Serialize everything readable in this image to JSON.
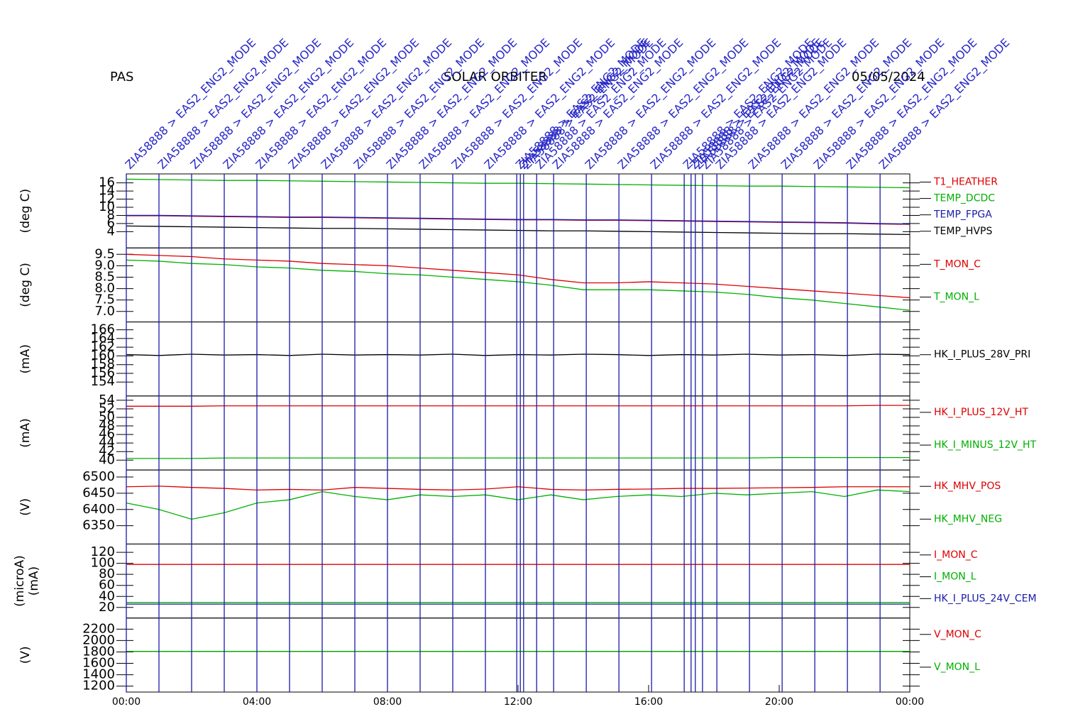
{
  "header": {
    "left": "PAS",
    "center": "SOLAR ORBITER",
    "right": "05/05/2024"
  },
  "time": {
    "x": [
      0,
      1,
      2,
      3,
      4,
      5,
      6,
      7,
      8,
      9,
      10,
      11,
      12,
      13,
      14,
      15,
      16,
      17,
      18,
      19,
      20,
      21,
      22,
      23,
      24
    ],
    "xlim": [
      0,
      24
    ],
    "xticks": [
      {
        "value": 0,
        "label": "00:00"
      },
      {
        "value": 4,
        "label": "04:00"
      },
      {
        "value": 8,
        "label": "08:00"
      },
      {
        "value": 12,
        "label": "12:00"
      },
      {
        "value": 16,
        "label": "16:00"
      },
      {
        "value": 20,
        "label": "20:00"
      },
      {
        "value": 24,
        "label": "00:00"
      }
    ]
  },
  "events": [
    {
      "x": 0,
      "label": "ZIA58888 > EAS2_ENG2_MODE"
    },
    {
      "x": 1,
      "label": "ZIA58888 > EAS2_ENG2_MODE"
    },
    {
      "x": 2,
      "label": "ZIA58888 > EAS2_ENG2_MODE"
    },
    {
      "x": 3,
      "label": "ZIA58888 > EAS2_ENG2_MODE"
    },
    {
      "x": 4,
      "label": "ZIA58888 > EAS2_ENG2_MODE"
    },
    {
      "x": 5,
      "label": "ZIA58888 > EAS2_ENG2_MODE"
    },
    {
      "x": 6,
      "label": "ZIA58888 > EAS2_ENG2_MODE"
    },
    {
      "x": 7,
      "label": "ZIA58888 > EAS2_ENG2_MODE"
    },
    {
      "x": 8,
      "label": "ZIA58888 > EAS2_ENG2_MODE"
    },
    {
      "x": 9,
      "label": "ZIA58888 > EAS2_ENG2_MODE"
    },
    {
      "x": 10,
      "label": "ZIA58888 > EAS2_ENG2_MODE"
    },
    {
      "x": 11,
      "label": "ZIA58888 > EAS2_ENG2_MODE"
    },
    {
      "x": 11.96,
      "label": "ZIA58888 > EAS2_ENG2_MODE"
    },
    {
      "x": 12.07,
      "label": "ZIA58888 > EAS2_ENG2_MODE"
    },
    {
      "x": 12.17,
      "label": "ZIA58888 > EAS2_ENG2_MODE"
    },
    {
      "x": 12.57,
      "label": "ZIA58888 > EAS2_ENG2_MODE"
    },
    {
      "x": 13.09,
      "label": "ZIA58888 > EAS2_ENG2_MODE"
    },
    {
      "x": 14.09,
      "label": "ZIA58888 > EAS2_ENG2_MODE"
    },
    {
      "x": 15.09,
      "label": "ZIA58888 > EAS2_ENG2_MODE"
    },
    {
      "x": 16.09,
      "label": "ZIA58888 > EAS2_ENG2_MODE"
    },
    {
      "x": 17.09,
      "label": "ZIA58888 > EAS2_ENG2_MODE"
    },
    {
      "x": 17.3,
      "label": "ZIA58888 > EAS2_ENG2_MODE"
    },
    {
      "x": 17.43,
      "label": "ZIA58888 > EAS2_ENG2_MODE"
    },
    {
      "x": 17.65,
      "label": "ZIA58888 > EAS2_ENG2_MODE"
    },
    {
      "x": 18.09,
      "label": "ZIA58888 > EAS2_ENG2_MODE"
    },
    {
      "x": 19.09,
      "label": "ZIA58888 > EAS2_ENG2_MODE"
    },
    {
      "x": 20.09,
      "label": "ZIA58888 > EAS2_ENG2_MODE"
    },
    {
      "x": 21.09,
      "label": "ZIA58888 > EAS2_ENG2_MODE"
    },
    {
      "x": 22.09,
      "label": "ZIA58888 > EAS2_ENG2_MODE"
    },
    {
      "x": 23.09,
      "label": "ZIA58888 > EAS2_ENG2_MODE"
    }
  ],
  "chart_data": [
    {
      "type": "line",
      "ylabel": "(deg C)",
      "ylim": [
        0,
        18.2
      ],
      "yticks": [
        4,
        6,
        8,
        10,
        12,
        14,
        16
      ],
      "series": [
        {
          "name": "T1_HEATHER",
          "color": "#dd0000",
          "values": [
            7.9,
            7.9,
            7.8,
            7.7,
            7.6,
            7.5,
            7.5,
            7.4,
            7.3,
            7.2,
            7.1,
            7.0,
            6.9,
            6.9,
            6.8,
            6.8,
            6.7,
            6.6,
            6.5,
            6.4,
            6.3,
            6.2,
            6.1,
            5.9,
            5.8
          ]
        },
        {
          "name": "TEMP_DCDC",
          "color": "#00b000",
          "values": [
            16.9,
            16.8,
            16.7,
            16.6,
            16.6,
            16.5,
            16.4,
            16.3,
            16.2,
            16.1,
            16.0,
            15.9,
            15.9,
            15.8,
            15.7,
            15.6,
            15.5,
            15.4,
            15.3,
            15.2,
            15.2,
            15.1,
            15.0,
            14.9,
            14.8
          ]
        },
        {
          "name": "TEMP_FPGA",
          "color": "#1a1aaa",
          "values": [
            8.0,
            8.0,
            7.9,
            7.8,
            7.7,
            7.6,
            7.6,
            7.5,
            7.4,
            7.3,
            7.2,
            7.1,
            7.0,
            7.0,
            6.9,
            6.9,
            6.8,
            6.7,
            6.6,
            6.5,
            6.4,
            6.3,
            6.2,
            6.0,
            5.9
          ]
        },
        {
          "name": "TEMP_HVPS",
          "color": "#000000",
          "values": [
            5.4,
            5.3,
            5.2,
            5.1,
            5.0,
            4.9,
            4.8,
            4.8,
            4.7,
            4.6,
            4.5,
            4.4,
            4.3,
            4.2,
            4.2,
            4.1,
            4.0,
            3.9,
            3.8,
            3.7,
            3.6,
            3.5,
            3.5,
            3.4,
            3.3
          ]
        }
      ]
    },
    {
      "type": "line",
      "ylabel": "(deg C)",
      "ylim": [
        6.54,
        9.78
      ],
      "yticks": [
        {
          "value": 7,
          "label": "7.0"
        },
        {
          "value": 7.5,
          "label": "7.5"
        },
        {
          "value": 8,
          "label": "8.0"
        },
        {
          "value": 8.5,
          "label": "8.5"
        },
        {
          "value": 9,
          "label": "9.0"
        },
        {
          "value": 9.5,
          "label": "9.5"
        }
      ],
      "series": [
        {
          "name": "T_MON_C",
          "color": "#dd0000",
          "values": [
            9.5,
            9.45,
            9.4,
            9.3,
            9.25,
            9.2,
            9.1,
            9.05,
            9.0,
            8.9,
            8.8,
            8.7,
            8.6,
            8.4,
            8.25,
            8.25,
            8.3,
            8.25,
            8.2,
            8.1,
            8.0,
            7.9,
            7.8,
            7.7,
            7.6
          ]
        },
        {
          "name": "T_MON_L",
          "color": "#00b000",
          "values": [
            9.25,
            9.2,
            9.1,
            9.05,
            8.95,
            8.9,
            8.8,
            8.75,
            8.65,
            8.6,
            8.5,
            8.4,
            8.3,
            8.15,
            7.95,
            7.95,
            7.95,
            7.9,
            7.85,
            7.75,
            7.6,
            7.5,
            7.35,
            7.2,
            7.05
          ]
        }
      ]
    },
    {
      "type": "line",
      "ylabel": "(mA)",
      "ylim": [
        150.8,
        167.8
      ],
      "yticks": [
        154,
        156,
        158,
        160,
        162,
        164,
        166
      ],
      "series": [
        {
          "name": "HK_I_PLUS_28V_PRI",
          "color": "#000000",
          "values": [
            160.3,
            160.1,
            160.4,
            160.2,
            160.3,
            160.1,
            160.4,
            160.2,
            160.3,
            160.2,
            160.4,
            160.1,
            160.3,
            160.2,
            160.4,
            160.3,
            160.1,
            160.3,
            160.2,
            160.4,
            160.2,
            160.3,
            160.1,
            160.4,
            160.3
          ]
        }
      ]
    },
    {
      "type": "line",
      "ylabel": "(mA)",
      "ylim": [
        37.7,
        55
      ],
      "yticks": [
        40,
        42,
        44,
        46,
        48,
        50,
        52,
        54
      ],
      "series": [
        {
          "name": "HK_I_PLUS_12V_HT",
          "color": "#dd0000",
          "values": [
            52.6,
            52.6,
            52.6,
            52.7,
            52.7,
            52.7,
            52.7,
            52.7,
            52.7,
            52.7,
            52.7,
            52.7,
            52.7,
            52.7,
            52.7,
            52.7,
            52.7,
            52.7,
            52.7,
            52.7,
            52.7,
            52.7,
            52.7,
            52.8,
            52.8
          ]
        },
        {
          "name": "HK_I_MINUS_12V_HT",
          "color": "#00b000",
          "values": [
            40.4,
            40.4,
            40.4,
            40.5,
            40.5,
            40.5,
            40.5,
            40.5,
            40.5,
            40.5,
            40.5,
            40.5,
            40.5,
            40.5,
            40.5,
            40.5,
            40.5,
            40.5,
            40.5,
            40.5,
            40.6,
            40.6,
            40.6,
            40.6,
            40.6
          ]
        }
      ]
    },
    {
      "type": "line",
      "ylabel": "(V)",
      "ylim": [
        6293.5,
        6521.7
      ],
      "yticks": [
        6350,
        6400,
        6450,
        6500
      ],
      "series": [
        {
          "name": "HK_MHV_POS",
          "color": "#dd0000",
          "values": [
            6470,
            6472,
            6468,
            6465,
            6460,
            6462,
            6460,
            6468,
            6465,
            6462,
            6460,
            6463,
            6470,
            6462,
            6460,
            6462,
            6463,
            6465,
            6465,
            6466,
            6467,
            6468,
            6470,
            6470,
            6470
          ]
        },
        {
          "name": "HK_MHV_NEG",
          "color": "#00b000",
          "values": [
            6420,
            6400,
            6370,
            6390,
            6420,
            6430,
            6455,
            6440,
            6430,
            6445,
            6440,
            6445,
            6430,
            6445,
            6430,
            6440,
            6445,
            6440,
            6450,
            6445,
            6450,
            6455,
            6440,
            6460,
            6455
          ]
        }
      ]
    },
    {
      "type": "line",
      "ylabel": "(microA)",
      "ylabel2": "(mA)",
      "ylim": [
        0.8,
        135
      ],
      "yticks": [
        20,
        40,
        60,
        80,
        100,
        120
      ],
      "series": [
        {
          "name": "I_MON_C",
          "color": "#dd0000",
          "values": [
            98,
            98,
            98,
            98,
            98,
            98,
            98,
            98,
            98,
            98,
            98,
            98,
            98,
            98,
            98,
            98,
            98,
            98,
            98,
            98,
            98,
            98,
            98,
            98,
            98
          ]
        },
        {
          "name": "I_MON_L",
          "color": "#00b000",
          "values": [
            29,
            29,
            29,
            29,
            29,
            29,
            29,
            29,
            29,
            29,
            29,
            29,
            29,
            29,
            29,
            29,
            29,
            29,
            29,
            29,
            29,
            29,
            29,
            29,
            29
          ]
        },
        {
          "name": "HK_I_PLUS_24V_CEM",
          "color": "#1a1aaa",
          "values": [
            26,
            26,
            26,
            26,
            26,
            26,
            26,
            26,
            26,
            26,
            26,
            26,
            26,
            26,
            26,
            26,
            26,
            26,
            26,
            26,
            26,
            26,
            26,
            26,
            26
          ]
        }
      ]
    },
    {
      "type": "line",
      "ylabel": "(V)",
      "ylim": [
        1096,
        2395
      ],
      "yticks": [
        1200,
        1400,
        1600,
        1800,
        2000,
        2200
      ],
      "series": [
        {
          "name": "V_MON_C",
          "color": "#dd0000",
          "values": [
            1810,
            1810,
            1810,
            1810,
            1810,
            1810,
            1810,
            1810,
            1810,
            1810,
            1810,
            1810,
            1810,
            1810,
            1810,
            1810,
            1810,
            1810,
            1810,
            1810,
            1810,
            1810,
            1810,
            1810,
            1810
          ]
        },
        {
          "name": "V_MON_L",
          "color": "#00b000",
          "values": [
            1810,
            1810,
            1810,
            1810,
            1810,
            1810,
            1810,
            1810,
            1810,
            1810,
            1810,
            1810,
            1810,
            1810,
            1810,
            1810,
            1810,
            1810,
            1810,
            1810,
            1810,
            1810,
            1810,
            1810,
            1810
          ]
        }
      ]
    }
  ]
}
